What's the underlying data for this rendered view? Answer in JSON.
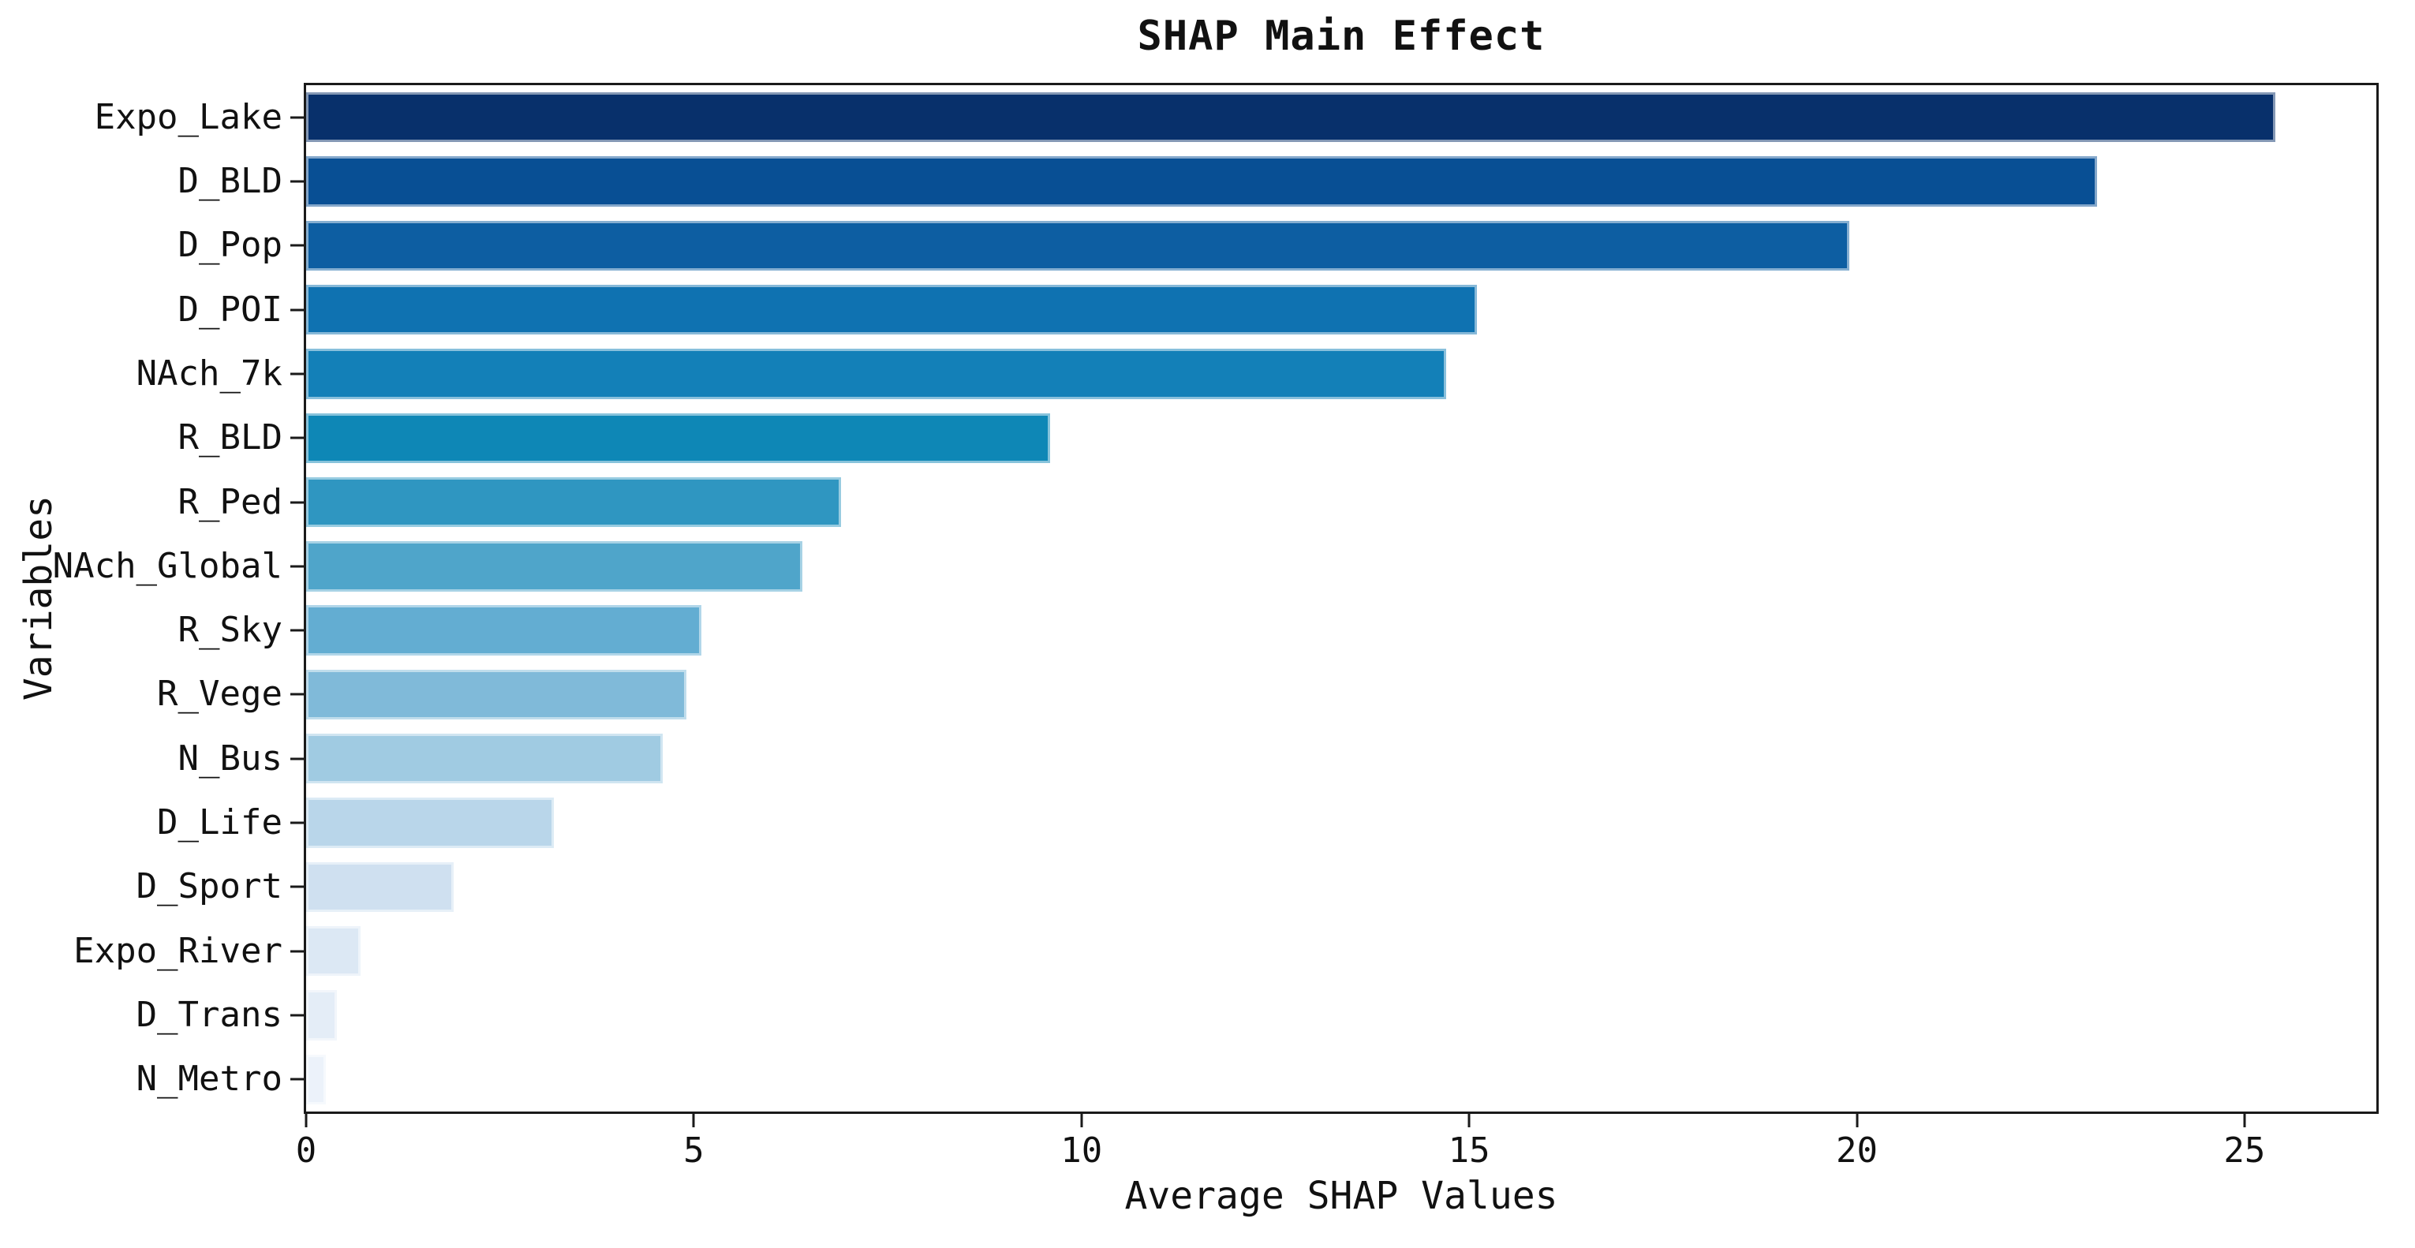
{
  "chart_data": {
    "type": "bar",
    "orientation": "horizontal",
    "title": "SHAP Main Effect",
    "xlabel": "Average SHAP Values",
    "ylabel": "Variables",
    "xlim": [
      0,
      26.7
    ],
    "x_ticks": [
      0,
      5,
      10,
      15,
      20,
      25
    ],
    "grid": false,
    "legend": "none",
    "bar_fill_fraction": 0.78,
    "categories": [
      "Expo_Lake",
      "D_BLD",
      "D_Pop",
      "D_POI",
      "NAch_7k",
      "R_BLD",
      "R_Ped",
      "NAch_Global",
      "R_Sky",
      "R_Vege",
      "N_Bus",
      "D_Life",
      "D_Sport",
      "Expo_River",
      "D_Trans",
      "N_Metro"
    ],
    "values": [
      25.4,
      23.1,
      19.9,
      15.1,
      14.7,
      9.6,
      6.9,
      6.4,
      5.1,
      4.9,
      4.6,
      3.2,
      1.9,
      0.7,
      0.4,
      0.25
    ],
    "bar_colors": [
      "#08306b",
      "#084f94",
      "#0d5ea2",
      "#0f72b1",
      "#1380b8",
      "#0e87b6",
      "#2f96c1",
      "#4fa5ca",
      "#63add2",
      "#80bad9",
      "#a0cbe2",
      "#b9d6ea",
      "#cfe0f0",
      "#dce8f4",
      "#e4edf7",
      "#ecf2fa"
    ]
  },
  "colors": {
    "background": "#ffffff",
    "spine": "#1a1a1a",
    "text": "#111111",
    "bar_edge": "rgba(255,255,255,0.5)"
  }
}
